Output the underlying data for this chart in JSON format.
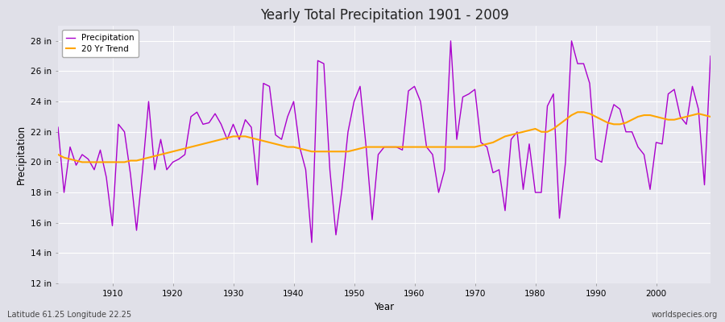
{
  "title": "Yearly Total Precipitation 1901 - 2009",
  "xlabel": "Year",
  "ylabel": "Precipitation",
  "lat_lon_label": "Latitude 61.25 Longitude 22.25",
  "source_label": "worldspecies.org",
  "precip_color": "#AA00CC",
  "trend_color": "#FFA500",
  "background_color": "#E8E8F0",
  "fig_background": "#E0E0E8",
  "ylim": [
    12,
    29
  ],
  "ytick_labels": [
    "12 in",
    "14 in",
    "16 in",
    "18 in",
    "20 in",
    "22 in",
    "24 in",
    "26 in",
    "28 in"
  ],
  "ytick_values": [
    12,
    14,
    16,
    18,
    20,
    22,
    24,
    26,
    28
  ],
  "years": [
    1901,
    1902,
    1903,
    1904,
    1905,
    1906,
    1907,
    1908,
    1909,
    1910,
    1911,
    1912,
    1913,
    1914,
    1915,
    1916,
    1917,
    1918,
    1919,
    1920,
    1921,
    1922,
    1923,
    1924,
    1925,
    1926,
    1927,
    1928,
    1929,
    1930,
    1931,
    1932,
    1933,
    1934,
    1935,
    1936,
    1937,
    1938,
    1939,
    1940,
    1941,
    1942,
    1943,
    1944,
    1945,
    1946,
    1947,
    1948,
    1949,
    1950,
    1951,
    1952,
    1953,
    1954,
    1955,
    1956,
    1957,
    1958,
    1959,
    1960,
    1961,
    1962,
    1963,
    1964,
    1965,
    1966,
    1967,
    1968,
    1969,
    1970,
    1971,
    1972,
    1973,
    1974,
    1975,
    1976,
    1977,
    1978,
    1979,
    1980,
    1981,
    1982,
    1983,
    1984,
    1985,
    1986,
    1987,
    1988,
    1989,
    1990,
    1991,
    1992,
    1993,
    1994,
    1995,
    1996,
    1997,
    1998,
    1999,
    2000,
    2001,
    2002,
    2003,
    2004,
    2005,
    2006,
    2007,
    2008,
    2009
  ],
  "precipitation": [
    22.3,
    18.0,
    21.0,
    19.8,
    20.5,
    20.2,
    19.5,
    20.8,
    19.0,
    15.8,
    22.5,
    22.0,
    19.2,
    15.5,
    19.5,
    24.0,
    19.5,
    21.5,
    19.5,
    20.0,
    20.2,
    20.5,
    23.0,
    23.3,
    22.5,
    22.6,
    23.2,
    22.5,
    21.5,
    22.5,
    21.5,
    22.8,
    22.3,
    18.5,
    25.2,
    25.0,
    21.8,
    21.5,
    23.0,
    24.0,
    21.0,
    19.5,
    14.7,
    26.7,
    26.5,
    19.5,
    15.2,
    18.2,
    22.0,
    24.0,
    25.0,
    21.0,
    16.2,
    20.5,
    21.0,
    21.0,
    21.0,
    20.8,
    24.7,
    25.0,
    24.0,
    21.0,
    20.5,
    18.0,
    19.5,
    28.0,
    21.5,
    24.3,
    24.5,
    24.8,
    21.3,
    21.0,
    19.3,
    19.5,
    16.8,
    21.5,
    22.0,
    18.2,
    21.2,
    18.0,
    18.0,
    23.7,
    24.5,
    16.3,
    20.0,
    28.0,
    26.5,
    26.5,
    25.2,
    20.2,
    20.0,
    22.5,
    23.8,
    23.5,
    22.0,
    22.0,
    21.0,
    20.5,
    18.2,
    21.3,
    21.2,
    24.5,
    24.8,
    23.0,
    22.5,
    25.0,
    23.5,
    18.5,
    27.0
  ],
  "trend": [
    20.5,
    20.3,
    20.2,
    20.1,
    20.0,
    20.0,
    20.0,
    20.0,
    20.0,
    20.0,
    20.0,
    20.0,
    20.1,
    20.1,
    20.2,
    20.3,
    20.4,
    20.5,
    20.6,
    20.7,
    20.8,
    20.9,
    21.0,
    21.1,
    21.2,
    21.3,
    21.4,
    21.5,
    21.6,
    21.7,
    21.7,
    21.7,
    21.6,
    21.5,
    21.4,
    21.3,
    21.2,
    21.1,
    21.0,
    21.0,
    20.9,
    20.8,
    20.7,
    20.7,
    20.7,
    20.7,
    20.7,
    20.7,
    20.7,
    20.8,
    20.9,
    21.0,
    21.0,
    21.0,
    21.0,
    21.0,
    21.0,
    21.0,
    21.0,
    21.0,
    21.0,
    21.0,
    21.0,
    21.0,
    21.0,
    21.0,
    21.0,
    21.0,
    21.0,
    21.0,
    21.1,
    21.2,
    21.3,
    21.5,
    21.7,
    21.8,
    21.9,
    22.0,
    22.1,
    22.2,
    22.0,
    22.0,
    22.2,
    22.5,
    22.8,
    23.1,
    23.3,
    23.3,
    23.2,
    23.0,
    22.8,
    22.6,
    22.5,
    22.5,
    22.6,
    22.8,
    23.0,
    23.1,
    23.1,
    23.0,
    22.9,
    22.8,
    22.8,
    22.9,
    23.0,
    23.1,
    23.2,
    23.1,
    23.0
  ]
}
